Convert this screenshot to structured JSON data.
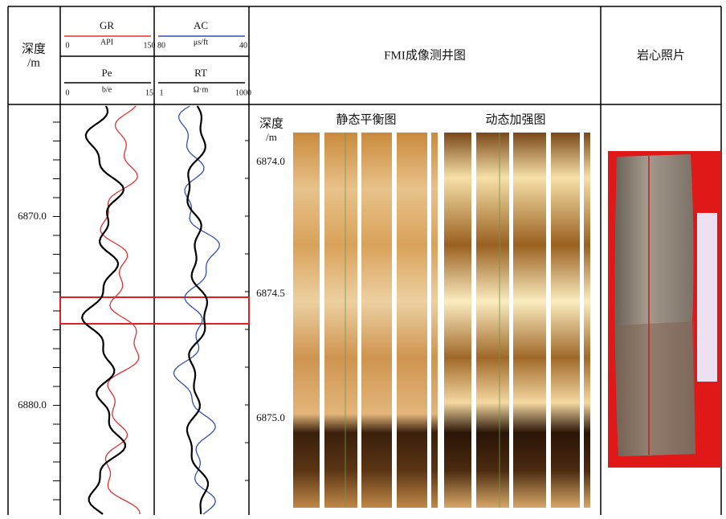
{
  "header": {
    "depth_title": "深度",
    "depth_unit": "/m",
    "fmi_title": "FMI成像测井图",
    "core_title": "岩心照片"
  },
  "tracks": [
    {
      "name": "GR",
      "unit": "API",
      "min": "0",
      "max": "150"
    },
    {
      "name": "Pe",
      "unit": "b/e",
      "min": "0",
      "max": "15"
    },
    {
      "name": "AC",
      "unit": "μs/ft",
      "min": "80",
      "max": "40"
    },
    {
      "name": "RT",
      "unit": "Ω·m",
      "min": "1",
      "max": "1000"
    }
  ],
  "log_depths": [
    "6870.0",
    "6880.0"
  ],
  "fmi": {
    "depth_title": "深度",
    "depth_unit": "/m",
    "static_title": "静态平衡图",
    "dynamic_title": "动态加强图",
    "depths": [
      "6874.0",
      "6874.5",
      "6875.0"
    ]
  }
}
